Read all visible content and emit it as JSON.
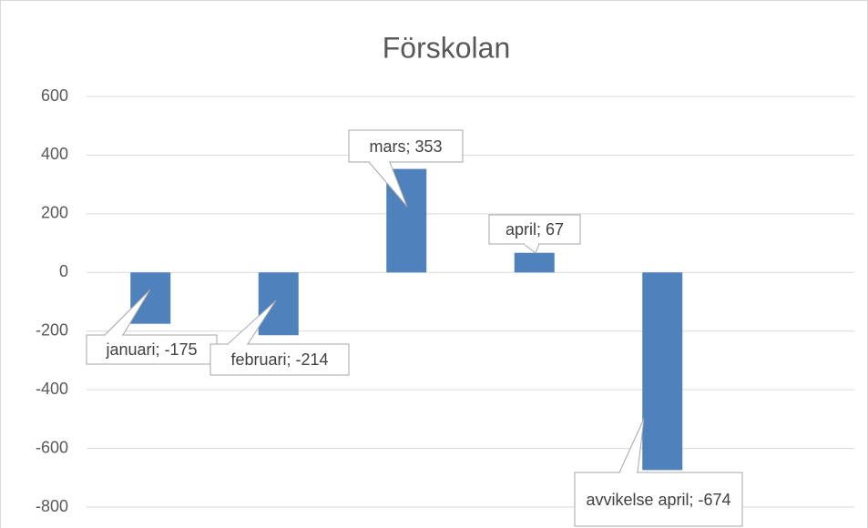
{
  "chart_data": {
    "type": "bar",
    "title": "Förskolan",
    "values": [
      -175,
      -214,
      353,
      67,
      -674,
      null
    ],
    "value_labels": [
      "januari; -175",
      "februari; -214",
      "mars; 353",
      "april; 67",
      "avvikelse april; -674",
      null
    ],
    "color": "#4f81bd",
    "ylim": [
      -800,
      600
    ],
    "yticks": [
      -800,
      -600,
      -400,
      -200,
      0,
      200,
      400,
      600
    ],
    "grid": true
  }
}
